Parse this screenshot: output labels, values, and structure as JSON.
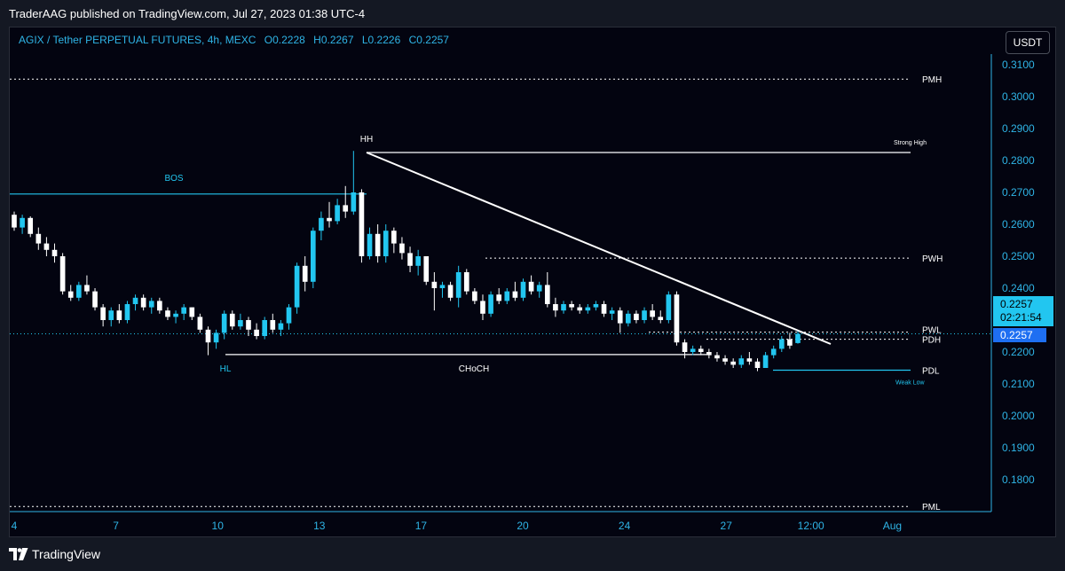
{
  "publish_line": "TraderAAG published on TradingView.com, Jul 27, 2023 01:38 UTC-4",
  "legend": {
    "symbol": "AGIX / Tether PERPETUAL FUTURES, 4h, MEXC",
    "open": "O0.2228",
    "high": "H0.2267",
    "low": "L0.2226",
    "close": "C0.2257"
  },
  "currency_button": "USDT",
  "price_scale": [
    "0.3100",
    "0.3000",
    "0.2900",
    "0.2800",
    "0.2700",
    "0.2600",
    "0.2500",
    "0.2400",
    "0.2300",
    "0.2200",
    "0.2100",
    "0.2000",
    "0.1900",
    "0.1800"
  ],
  "time_scale": [
    "4",
    "7",
    "10",
    "13",
    "17",
    "20",
    "24",
    "27",
    "12:00",
    "Aug"
  ],
  "last_price": {
    "price": "0.2257",
    "countdown": "02:21:54",
    "crosshair_price": "0.2257"
  },
  "annotations": {
    "pmh": "PMH",
    "pml": "PML",
    "strong_high": "Strong High",
    "hh": "HH",
    "bos": "BOS",
    "pwh": "PWH",
    "pwl": "PWL",
    "pdh": "PDH",
    "pdl": "PDL",
    "weak_low": "Weak Low",
    "hl": "HL",
    "choch": "CHoCH"
  },
  "brand": "TradingView",
  "colors": {
    "background": "#030410",
    "frame": "#141823",
    "bull_candle": "#22c6f0",
    "bear_candle": "#ffffff",
    "accent": "#2fb4e6",
    "last_price_label": "#1e6ff2"
  },
  "chart_data": {
    "type": "candlestick",
    "symbol": "AGIX/USDT",
    "timeframe": "4h",
    "x": [
      "Jul 4",
      "Jul 7",
      "Jul 10",
      "Jul 13",
      "Jul 17",
      "Jul 20",
      "Jul 24",
      "Jul 27"
    ],
    "candles_ohlc": [
      [
        0.263,
        0.264,
        0.258,
        0.259
      ],
      [
        0.259,
        0.263,
        0.257,
        0.262
      ],
      [
        0.262,
        0.2625,
        0.256,
        0.257
      ],
      [
        0.257,
        0.259,
        0.252,
        0.254
      ],
      [
        0.254,
        0.256,
        0.25,
        0.252
      ],
      [
        0.252,
        0.254,
        0.248,
        0.25
      ],
      [
        0.25,
        0.251,
        0.238,
        0.239
      ],
      [
        0.239,
        0.241,
        0.236,
        0.237
      ],
      [
        0.237,
        0.242,
        0.236,
        0.241
      ],
      [
        0.241,
        0.244,
        0.238,
        0.239
      ],
      [
        0.239,
        0.24,
        0.233,
        0.234
      ],
      [
        0.234,
        0.235,
        0.228,
        0.23
      ],
      [
        0.23,
        0.234,
        0.228,
        0.233
      ],
      [
        0.233,
        0.235,
        0.229,
        0.23
      ],
      [
        0.23,
        0.236,
        0.229,
        0.235
      ],
      [
        0.235,
        0.238,
        0.233,
        0.237
      ],
      [
        0.237,
        0.238,
        0.233,
        0.234
      ],
      [
        0.234,
        0.237,
        0.232,
        0.236
      ],
      [
        0.236,
        0.237,
        0.232,
        0.233
      ],
      [
        0.233,
        0.234,
        0.23,
        0.231
      ],
      [
        0.231,
        0.233,
        0.229,
        0.232
      ],
      [
        0.232,
        0.235,
        0.23,
        0.234
      ],
      [
        0.234,
        0.234,
        0.23,
        0.231
      ],
      [
        0.231,
        0.232,
        0.226,
        0.227
      ],
      [
        0.227,
        0.228,
        0.219,
        0.223
      ],
      [
        0.223,
        0.227,
        0.221,
        0.226
      ],
      [
        0.226,
        0.233,
        0.224,
        0.232
      ],
      [
        0.232,
        0.233,
        0.227,
        0.228
      ],
      [
        0.228,
        0.232,
        0.227,
        0.23
      ],
      [
        0.23,
        0.231,
        0.225,
        0.227
      ],
      [
        0.227,
        0.229,
        0.224,
        0.225
      ],
      [
        0.225,
        0.231,
        0.224,
        0.23
      ],
      [
        0.23,
        0.232,
        0.226,
        0.227
      ],
      [
        0.227,
        0.23,
        0.225,
        0.229
      ],
      [
        0.229,
        0.235,
        0.227,
        0.234
      ],
      [
        0.234,
        0.248,
        0.232,
        0.247
      ],
      [
        0.247,
        0.25,
        0.239,
        0.242
      ],
      [
        0.242,
        0.259,
        0.24,
        0.258
      ],
      [
        0.258,
        0.264,
        0.255,
        0.262
      ],
      [
        0.262,
        0.267,
        0.259,
        0.261
      ],
      [
        0.261,
        0.268,
        0.26,
        0.266
      ],
      [
        0.266,
        0.272,
        0.262,
        0.264
      ],
      [
        0.264,
        0.283,
        0.263,
        0.27
      ],
      [
        0.27,
        0.271,
        0.248,
        0.25
      ],
      [
        0.25,
        0.259,
        0.249,
        0.257
      ],
      [
        0.257,
        0.26,
        0.248,
        0.25
      ],
      [
        0.25,
        0.26,
        0.248,
        0.258
      ],
      [
        0.258,
        0.259,
        0.251,
        0.254
      ],
      [
        0.254,
        0.256,
        0.249,
        0.251
      ],
      [
        0.251,
        0.253,
        0.245,
        0.247
      ],
      [
        0.247,
        0.252,
        0.244,
        0.25
      ],
      [
        0.25,
        0.25,
        0.241,
        0.242
      ],
      [
        0.242,
        0.245,
        0.233,
        0.24
      ],
      [
        0.24,
        0.242,
        0.237,
        0.241
      ],
      [
        0.241,
        0.242,
        0.236,
        0.237
      ],
      [
        0.237,
        0.247,
        0.234,
        0.245
      ],
      [
        0.245,
        0.246,
        0.238,
        0.239
      ],
      [
        0.239,
        0.24,
        0.235,
        0.236
      ],
      [
        0.236,
        0.238,
        0.23,
        0.232
      ],
      [
        0.232,
        0.239,
        0.231,
        0.238
      ],
      [
        0.238,
        0.24,
        0.235,
        0.236
      ],
      [
        0.236,
        0.24,
        0.235,
        0.239
      ],
      [
        0.239,
        0.242,
        0.236,
        0.237
      ],
      [
        0.237,
        0.243,
        0.236,
        0.242
      ],
      [
        0.242,
        0.244,
        0.238,
        0.239
      ],
      [
        0.239,
        0.242,
        0.237,
        0.241
      ],
      [
        0.241,
        0.245,
        0.234,
        0.235
      ],
      [
        0.235,
        0.237,
        0.231,
        0.233
      ],
      [
        0.233,
        0.236,
        0.232,
        0.235
      ],
      [
        0.235,
        0.236,
        0.233,
        0.234
      ],
      [
        0.234,
        0.235,
        0.232,
        0.233
      ],
      [
        0.233,
        0.235,
        0.232,
        0.234
      ],
      [
        0.234,
        0.236,
        0.233,
        0.235
      ],
      [
        0.235,
        0.236,
        0.231,
        0.232
      ],
      [
        0.232,
        0.234,
        0.23,
        0.233
      ],
      [
        0.233,
        0.234,
        0.226,
        0.229
      ],
      [
        0.229,
        0.233,
        0.228,
        0.232
      ],
      [
        0.232,
        0.233,
        0.229,
        0.23
      ],
      [
        0.23,
        0.234,
        0.229,
        0.233
      ],
      [
        0.233,
        0.235,
        0.23,
        0.231
      ],
      [
        0.231,
        0.233,
        0.229,
        0.23
      ],
      [
        0.23,
        0.239,
        0.229,
        0.238
      ],
      [
        0.238,
        0.239,
        0.222,
        0.223
      ],
      [
        0.223,
        0.224,
        0.218,
        0.22
      ],
      [
        0.22,
        0.222,
        0.219,
        0.221
      ],
      [
        0.221,
        0.222,
        0.219,
        0.22
      ],
      [
        0.22,
        0.221,
        0.218,
        0.219
      ],
      [
        0.219,
        0.22,
        0.217,
        0.218
      ],
      [
        0.218,
        0.219,
        0.216,
        0.217
      ],
      [
        0.217,
        0.218,
        0.215,
        0.216
      ],
      [
        0.216,
        0.219,
        0.215,
        0.218
      ],
      [
        0.218,
        0.22,
        0.216,
        0.217
      ],
      [
        0.217,
        0.218,
        0.214,
        0.215
      ],
      [
        0.215,
        0.22,
        0.215,
        0.219
      ],
      [
        0.219,
        0.222,
        0.218,
        0.221
      ],
      [
        0.221,
        0.225,
        0.22,
        0.224
      ],
      [
        0.224,
        0.226,
        0.221,
        0.222
      ],
      [
        0.2228,
        0.2267,
        0.2226,
        0.2257
      ]
    ],
    "levels": [
      {
        "name": "PMH",
        "price": 0.3055,
        "style": "dotted"
      },
      {
        "name": "Strong High",
        "price": 0.2825,
        "style": "solid"
      },
      {
        "name": "BOS",
        "price": 0.2695,
        "style": "solid"
      },
      {
        "name": "PWH",
        "price": 0.2494,
        "style": "dotted"
      },
      {
        "name": "PWL",
        "price": 0.2262,
        "style": "dotted"
      },
      {
        "name": "PDH",
        "price": 0.224,
        "style": "dotted"
      },
      {
        "name": "CHoCH",
        "price": 0.2192,
        "style": "solid"
      },
      {
        "name": "PDL",
        "price": 0.2143,
        "style": "solid"
      },
      {
        "name": "PML",
        "price": 0.1716,
        "style": "dotted"
      }
    ],
    "trendline": {
      "from": [
        "Jul 14",
        0.2825
      ],
      "to": [
        "Jul 28",
        0.2225
      ]
    },
    "ylim": [
      0.171,
      0.312
    ],
    "xlim": [
      "Jul 4",
      "Aug 1"
    ],
    "grid": false,
    "legend_position": "top-left"
  }
}
